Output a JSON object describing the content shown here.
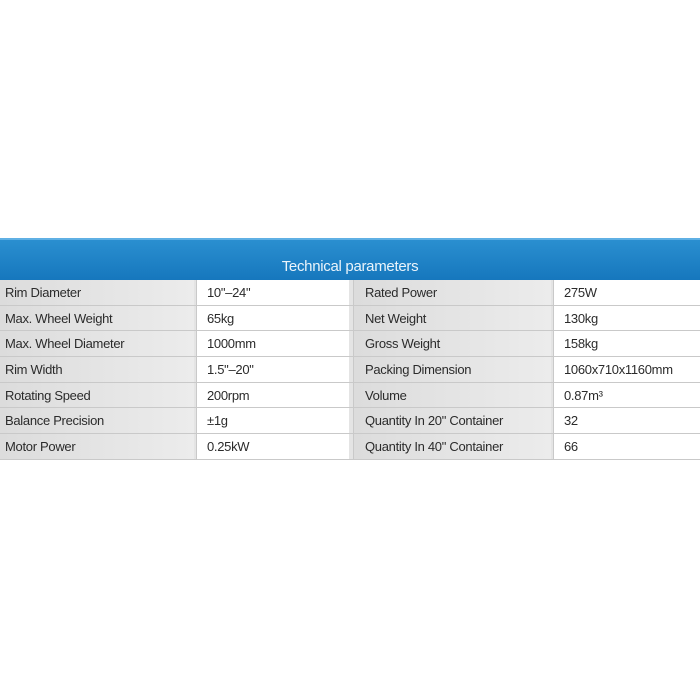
{
  "title": "Technical parameters",
  "rows": [
    {
      "label1": "Rim Diameter",
      "value1": "10\"–24\"",
      "label2": "Rated Power",
      "value2": "275W"
    },
    {
      "label1": "Max. Wheel Weight",
      "value1": "65kg",
      "label2": "Net Weight",
      "value2": "130kg"
    },
    {
      "label1": "Max. Wheel Diameter",
      "value1": "1000mm",
      "label2": "Gross Weight",
      "value2": "158kg"
    },
    {
      "label1": "Rim Width",
      "value1": "1.5\"–20\"",
      "label2": "Packing Dimension",
      "value2": "1060x710x1160mm"
    },
    {
      "label1": "Rotating Speed",
      "value1": "200rpm",
      "label2": "Volume",
      "value2": "0.87m³"
    },
    {
      "label1": "Balance Precision",
      "value1": "±1g",
      "label2": "Quantity In 20\" Container",
      "value2": "32"
    },
    {
      "label1": "Motor Power",
      "value1": "0.25kW",
      "label2": "Quantity In 40\" Container",
      "value2": "66"
    }
  ],
  "colors": {
    "header": "#1a7ec2",
    "label_bg": "#e0e0e0",
    "value_bg": "#ffffff"
  }
}
